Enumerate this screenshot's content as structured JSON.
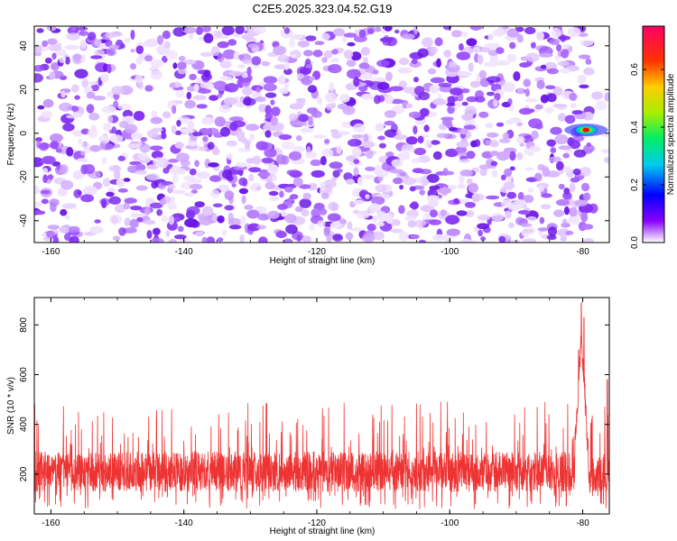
{
  "title": "C2E5.2025.323.04.52.G19",
  "chart_data": [
    {
      "type": "heatmap",
      "title": "C2E5.2025.323.04.52.G19",
      "xlabel": "Height of straight line (km)",
      "ylabel": "Frequency (Hz)",
      "xlim": [
        -162.5,
        -76
      ],
      "ylim": [
        -50,
        49
      ],
      "x_ticks": [
        "-160",
        "-140",
        "-120",
        "-100",
        "-80"
      ],
      "y_ticks": [
        "-40",
        "-20",
        "0",
        "20",
        "40"
      ],
      "colorbar": {
        "label": "Normalized spectral amplitude",
        "range": [
          0,
          0.75
        ],
        "ticks": [
          "0.0",
          "0.2",
          "0.4",
          "0.6"
        ]
      },
      "features": {
        "background": "random speckle of low amplitude (approx. 0.05 to 0.15) across full range",
        "peak": {
          "x": -79.5,
          "y": 1.5,
          "amplitude": 0.75
        },
        "gap": {
          "x_start": -79,
          "x_end": -76.5
        }
      }
    },
    {
      "type": "line",
      "title": "",
      "xlabel": "Height of straight line (km)",
      "ylabel": "SNR (10 * v/v)",
      "xlim": [
        -162.5,
        -76
      ],
      "ylim": [
        40,
        910
      ],
      "x_ticks": [
        "-160",
        "-140",
        "-120",
        "-100",
        "-80"
      ],
      "y_ticks": [
        "200",
        "400",
        "600",
        "800"
      ],
      "series": [
        {
          "name": "SNR",
          "color": "#ee3333",
          "baseline": 210,
          "noise_band": [
            80,
            450
          ],
          "peak_spikes": [
            {
              "x": -80.2,
              "value": 890
            },
            {
              "x": -79.8,
              "value": 830
            },
            {
              "x": -80.6,
              "value": 700
            },
            {
              "x": -76.3,
              "value": 580
            }
          ]
        }
      ]
    }
  ]
}
